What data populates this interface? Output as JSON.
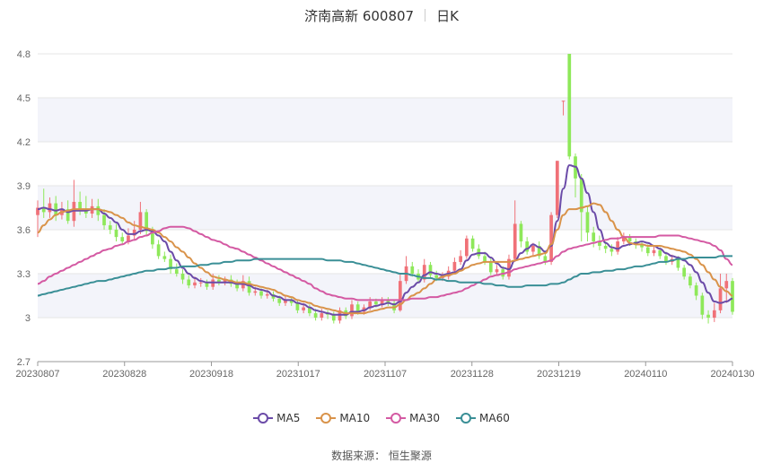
{
  "header": {
    "title": "济南高新 600807",
    "period": "日K"
  },
  "legend": [
    {
      "name": "MA5",
      "color": "#6b4ba8"
    },
    {
      "name": "MA10",
      "color": "#d9934a"
    },
    {
      "name": "MA30",
      "color": "#d45aa3"
    },
    {
      "name": "MA60",
      "color": "#3a8f96"
    }
  ],
  "source": "数据来源： 恒生聚源",
  "colors": {
    "up": "#f07178",
    "down": "#8ee85a",
    "grid": "#e6e6e6",
    "band": "#f3f4fa"
  },
  "chart_data": {
    "type": "candlestick",
    "x_tick_labels": [
      "20230807",
      "20230828",
      "20230918",
      "20231017",
      "20231107",
      "20231128",
      "20231219",
      "20240110",
      "20240130"
    ],
    "y_ticks": [
      2.7,
      3,
      3.3,
      3.6,
      3.9,
      4.2,
      4.5,
      4.8
    ],
    "y_tick_labels": [
      "2.7",
      "3",
      "3.3",
      "3.6",
      "3.9",
      "4.2",
      "4.5",
      "4.8"
    ],
    "ylim": [
      2.7,
      4.8
    ],
    "candles": [
      [
        3.7,
        3.75,
        3.8,
        3.55
      ],
      [
        3.75,
        3.72,
        3.88,
        3.68
      ],
      [
        3.72,
        3.78,
        3.82,
        3.68
      ],
      [
        3.78,
        3.7,
        3.83,
        3.66
      ],
      [
        3.7,
        3.74,
        3.79,
        3.67
      ],
      [
        3.74,
        3.66,
        3.8,
        3.64
      ],
      [
        3.66,
        3.79,
        3.94,
        3.62
      ],
      [
        3.79,
        3.74,
        3.86,
        3.7
      ],
      [
        3.74,
        3.71,
        3.83,
        3.68
      ],
      [
        3.71,
        3.76,
        3.81,
        3.68
      ],
      [
        3.76,
        3.7,
        3.81,
        3.66
      ],
      [
        3.7,
        3.63,
        3.74,
        3.6
      ],
      [
        3.63,
        3.6,
        3.66,
        3.57
      ],
      [
        3.6,
        3.55,
        3.64,
        3.52
      ],
      [
        3.55,
        3.52,
        3.58,
        3.5
      ],
      [
        3.52,
        3.56,
        3.61,
        3.5
      ],
      [
        3.56,
        3.6,
        3.66,
        3.53
      ],
      [
        3.6,
        3.72,
        3.79,
        3.57
      ],
      [
        3.72,
        3.59,
        3.74,
        3.56
      ],
      [
        3.59,
        3.5,
        3.62,
        3.47
      ],
      [
        3.5,
        3.42,
        3.53,
        3.4
      ],
      [
        3.42,
        3.4,
        3.45,
        3.38
      ],
      [
        3.4,
        3.33,
        3.43,
        3.3
      ],
      [
        3.33,
        3.3,
        3.37,
        3.28
      ],
      [
        3.3,
        3.26,
        3.33,
        3.23
      ],
      [
        3.26,
        3.22,
        3.29,
        3.2
      ],
      [
        3.22,
        3.24,
        3.28,
        3.2
      ],
      [
        3.24,
        3.24,
        3.27,
        3.21
      ],
      [
        3.24,
        3.21,
        3.26,
        3.19
      ],
      [
        3.21,
        3.26,
        3.3,
        3.19
      ],
      [
        3.26,
        3.24,
        3.29,
        3.22
      ],
      [
        3.24,
        3.26,
        3.28,
        3.22
      ],
      [
        3.26,
        3.23,
        3.29,
        3.21
      ],
      [
        3.23,
        3.2,
        3.26,
        3.18
      ],
      [
        3.2,
        3.25,
        3.29,
        3.18
      ],
      [
        3.25,
        3.17,
        3.28,
        3.15
      ],
      [
        3.17,
        3.18,
        3.21,
        3.15
      ],
      [
        3.18,
        3.15,
        3.2,
        3.13
      ],
      [
        3.15,
        3.16,
        3.19,
        3.13
      ],
      [
        3.16,
        3.13,
        3.18,
        3.11
      ],
      [
        3.13,
        3.1,
        3.15,
        3.08
      ],
      [
        3.1,
        3.12,
        3.15,
        3.08
      ],
      [
        3.12,
        3.1,
        3.14,
        3.08
      ],
      [
        3.1,
        3.05,
        3.12,
        3.03
      ],
      [
        3.05,
        3.07,
        3.1,
        3.03
      ],
      [
        3.07,
        3.03,
        3.09,
        3.01
      ],
      [
        3.03,
        3.0,
        3.06,
        2.98
      ],
      [
        3.0,
        3.03,
        3.06,
        2.98
      ],
      [
        3.03,
        3.02,
        3.05,
        2.99
      ],
      [
        3.02,
        2.98,
        3.04,
        2.96
      ],
      [
        2.98,
        3.05,
        3.07,
        2.96
      ],
      [
        3.05,
        3.01,
        3.07,
        2.99
      ],
      [
        3.01,
        3.09,
        3.12,
        2.99
      ],
      [
        3.09,
        3.04,
        3.11,
        3.02
      ],
      [
        3.04,
        3.07,
        3.09,
        3.02
      ],
      [
        3.07,
        3.11,
        3.14,
        3.05
      ],
      [
        3.11,
        3.09,
        3.13,
        3.07
      ],
      [
        3.09,
        3.12,
        3.14,
        3.07
      ],
      [
        3.12,
        3.1,
        3.14,
        3.08
      ],
      [
        3.1,
        3.05,
        3.12,
        3.03
      ],
      [
        3.05,
        3.25,
        3.3,
        3.04
      ],
      [
        3.25,
        3.35,
        3.42,
        3.23
      ],
      [
        3.35,
        3.3,
        3.38,
        3.28
      ],
      [
        3.3,
        3.26,
        3.33,
        3.24
      ],
      [
        3.26,
        3.36,
        3.4,
        3.24
      ],
      [
        3.36,
        3.29,
        3.38,
        3.27
      ],
      [
        3.29,
        3.27,
        3.32,
        3.25
      ],
      [
        3.27,
        3.28,
        3.31,
        3.25
      ],
      [
        3.28,
        3.32,
        3.35,
        3.26
      ],
      [
        3.32,
        3.38,
        3.41,
        3.3
      ],
      [
        3.38,
        3.42,
        3.46,
        3.36
      ],
      [
        3.42,
        3.54,
        3.56,
        3.4
      ],
      [
        3.54,
        3.47,
        3.56,
        3.45
      ],
      [
        3.47,
        3.42,
        3.5,
        3.4
      ],
      [
        3.42,
        3.38,
        3.45,
        3.36
      ],
      [
        3.38,
        3.31,
        3.41,
        3.29
      ],
      [
        3.31,
        3.33,
        3.36,
        3.29
      ],
      [
        3.33,
        3.28,
        3.35,
        3.26
      ],
      [
        3.28,
        3.4,
        3.43,
        3.26
      ],
      [
        3.4,
        3.64,
        3.8,
        3.38
      ],
      [
        3.64,
        3.52,
        3.66,
        3.48
      ],
      [
        3.52,
        3.45,
        3.55,
        3.43
      ],
      [
        3.45,
        3.49,
        3.51,
        3.42
      ],
      [
        3.49,
        3.42,
        3.52,
        3.4
      ],
      [
        3.42,
        3.38,
        3.45,
        3.36
      ],
      [
        3.38,
        3.7,
        3.72,
        3.36
      ],
      [
        3.7,
        4.07,
        4.07,
        3.68
      ],
      [
        4.48,
        4.48,
        4.48,
        4.38
      ],
      [
        4.8,
        4.1,
        4.8,
        4.08
      ],
      [
        4.1,
        3.95,
        4.12,
        3.82
      ],
      [
        3.95,
        3.72,
        3.98,
        3.52
      ],
      [
        3.72,
        3.58,
        3.76,
        3.52
      ],
      [
        3.58,
        3.52,
        3.62,
        3.48
      ],
      [
        3.52,
        3.49,
        3.56,
        3.46
      ],
      [
        3.49,
        3.47,
        3.52,
        3.44
      ],
      [
        3.47,
        3.45,
        3.5,
        3.42
      ],
      [
        3.45,
        3.52,
        3.55,
        3.43
      ],
      [
        3.52,
        3.55,
        3.58,
        3.5
      ],
      [
        3.55,
        3.52,
        3.57,
        3.49
      ],
      [
        3.52,
        3.5,
        3.54,
        3.47
      ],
      [
        3.5,
        3.48,
        3.52,
        3.45
      ],
      [
        3.48,
        3.44,
        3.5,
        3.42
      ],
      [
        3.44,
        3.46,
        3.49,
        3.42
      ],
      [
        3.46,
        3.42,
        3.48,
        3.4
      ],
      [
        3.42,
        3.38,
        3.45,
        3.36
      ],
      [
        3.38,
        3.4,
        3.43,
        3.36
      ],
      [
        3.4,
        3.34,
        3.42,
        3.32
      ],
      [
        3.34,
        3.28,
        3.36,
        3.26
      ],
      [
        3.28,
        3.22,
        3.3,
        3.2
      ],
      [
        3.22,
        3.15,
        3.24,
        3.12
      ],
      [
        3.15,
        3.02,
        3.17,
        2.99
      ],
      [
        3.02,
        3.0,
        3.05,
        2.96
      ],
      [
        3.0,
        3.05,
        3.1,
        2.97
      ],
      [
        3.05,
        3.2,
        3.3,
        3.03
      ],
      [
        3.2,
        3.25,
        3.3,
        3.1
      ],
      [
        3.25,
        3.04,
        3.27,
        3.02
      ]
    ],
    "series": [
      {
        "name": "MA5",
        "color": "#6b4ba8",
        "values": [
          3.74,
          3.75,
          3.74,
          3.73,
          3.74,
          3.72,
          3.73,
          3.73,
          3.73,
          3.74,
          3.74,
          3.71,
          3.68,
          3.65,
          3.6,
          3.57,
          3.57,
          3.59,
          3.6,
          3.59,
          3.56,
          3.52,
          3.45,
          3.39,
          3.34,
          3.3,
          3.27,
          3.25,
          3.24,
          3.24,
          3.24,
          3.24,
          3.24,
          3.23,
          3.23,
          3.22,
          3.2,
          3.19,
          3.18,
          3.15,
          3.14,
          3.12,
          3.12,
          3.1,
          3.09,
          3.07,
          3.05,
          3.04,
          3.03,
          3.02,
          3.02,
          3.02,
          3.04,
          3.04,
          3.05,
          3.07,
          3.08,
          3.09,
          3.1,
          3.09,
          3.11,
          3.17,
          3.21,
          3.24,
          3.29,
          3.31,
          3.3,
          3.29,
          3.3,
          3.31,
          3.33,
          3.39,
          3.43,
          3.44,
          3.44,
          3.41,
          3.37,
          3.34,
          3.33,
          3.39,
          3.44,
          3.47,
          3.5,
          3.48,
          3.45,
          3.49,
          3.66,
          3.88,
          4.04,
          4.03,
          3.95,
          3.85,
          3.72,
          3.6,
          3.51,
          3.48,
          3.47,
          3.49,
          3.5,
          3.51,
          3.52,
          3.51,
          3.49,
          3.47,
          3.44,
          3.42,
          3.41,
          3.39,
          3.36,
          3.31,
          3.24,
          3.17,
          3.11,
          3.1,
          3.11,
          3.13
        ]
      },
      {
        "name": "MA10",
        "color": "#d9934a",
        "values": [
          3.58,
          3.63,
          3.67,
          3.7,
          3.72,
          3.73,
          3.74,
          3.74,
          3.74,
          3.74,
          3.74,
          3.73,
          3.72,
          3.7,
          3.68,
          3.65,
          3.63,
          3.62,
          3.61,
          3.6,
          3.58,
          3.55,
          3.52,
          3.48,
          3.45,
          3.41,
          3.37,
          3.34,
          3.31,
          3.28,
          3.27,
          3.26,
          3.25,
          3.24,
          3.24,
          3.23,
          3.22,
          3.21,
          3.2,
          3.19,
          3.17,
          3.15,
          3.14,
          3.12,
          3.11,
          3.1,
          3.08,
          3.07,
          3.06,
          3.05,
          3.04,
          3.03,
          3.03,
          3.03,
          3.03,
          3.04,
          3.05,
          3.06,
          3.07,
          3.07,
          3.09,
          3.12,
          3.15,
          3.17,
          3.2,
          3.23,
          3.26,
          3.28,
          3.29,
          3.3,
          3.32,
          3.34,
          3.36,
          3.37,
          3.38,
          3.38,
          3.38,
          3.38,
          3.38,
          3.39,
          3.4,
          3.41,
          3.42,
          3.43,
          3.44,
          3.5,
          3.6,
          3.7,
          3.74,
          3.74,
          3.75,
          3.76,
          3.78,
          3.77,
          3.72,
          3.66,
          3.6,
          3.55,
          3.51,
          3.5,
          3.5,
          3.49,
          3.49,
          3.49,
          3.48,
          3.47,
          3.46,
          3.45,
          3.43,
          3.4,
          3.36,
          3.31,
          3.26,
          3.21,
          3.18,
          3.15
        ]
      },
      {
        "name": "MA30",
        "color": "#d45aa3",
        "values": [
          3.23,
          3.25,
          3.28,
          3.3,
          3.32,
          3.34,
          3.36,
          3.38,
          3.4,
          3.42,
          3.44,
          3.46,
          3.47,
          3.49,
          3.5,
          3.52,
          3.53,
          3.55,
          3.56,
          3.58,
          3.59,
          3.61,
          3.62,
          3.62,
          3.62,
          3.61,
          3.59,
          3.57,
          3.55,
          3.53,
          3.52,
          3.5,
          3.48,
          3.47,
          3.45,
          3.43,
          3.41,
          3.39,
          3.37,
          3.35,
          3.33,
          3.31,
          3.29,
          3.27,
          3.25,
          3.23,
          3.2,
          3.18,
          3.16,
          3.15,
          3.14,
          3.13,
          3.13,
          3.12,
          3.12,
          3.12,
          3.12,
          3.12,
          3.12,
          3.12,
          3.12,
          3.12,
          3.13,
          3.13,
          3.13,
          3.14,
          3.14,
          3.15,
          3.16,
          3.17,
          3.18,
          3.2,
          3.22,
          3.24,
          3.26,
          3.28,
          3.29,
          3.3,
          3.31,
          3.33,
          3.34,
          3.35,
          3.36,
          3.37,
          3.38,
          3.39,
          3.42,
          3.45,
          3.47,
          3.48,
          3.49,
          3.5,
          3.51,
          3.52,
          3.53,
          3.54,
          3.54,
          3.55,
          3.55,
          3.55,
          3.55,
          3.55,
          3.55,
          3.56,
          3.56,
          3.56,
          3.56,
          3.55,
          3.54,
          3.53,
          3.52,
          3.51,
          3.49,
          3.46,
          3.4,
          3.36
        ]
      },
      {
        "name": "MA60",
        "color": "#3a8f96",
        "values": [
          3.15,
          3.16,
          3.17,
          3.18,
          3.19,
          3.2,
          3.21,
          3.22,
          3.23,
          3.24,
          3.25,
          3.25,
          3.26,
          3.27,
          3.28,
          3.29,
          3.3,
          3.31,
          3.32,
          3.32,
          3.33,
          3.33,
          3.34,
          3.34,
          3.35,
          3.35,
          3.35,
          3.36,
          3.36,
          3.37,
          3.37,
          3.38,
          3.38,
          3.39,
          3.39,
          3.39,
          3.4,
          3.4,
          3.4,
          3.4,
          3.4,
          3.4,
          3.4,
          3.4,
          3.4,
          3.4,
          3.4,
          3.4,
          3.39,
          3.39,
          3.39,
          3.38,
          3.38,
          3.37,
          3.36,
          3.35,
          3.34,
          3.33,
          3.32,
          3.31,
          3.3,
          3.3,
          3.29,
          3.28,
          3.27,
          3.27,
          3.26,
          3.26,
          3.25,
          3.25,
          3.24,
          3.24,
          3.24,
          3.24,
          3.23,
          3.23,
          3.22,
          3.22,
          3.21,
          3.21,
          3.21,
          3.22,
          3.22,
          3.22,
          3.22,
          3.23,
          3.23,
          3.24,
          3.26,
          3.28,
          3.3,
          3.3,
          3.31,
          3.31,
          3.32,
          3.32,
          3.33,
          3.33,
          3.34,
          3.35,
          3.35,
          3.36,
          3.37,
          3.38,
          3.38,
          3.39,
          3.4,
          3.4,
          3.41,
          3.41,
          3.41,
          3.41,
          3.41,
          3.42,
          3.42,
          3.42
        ]
      }
    ]
  }
}
